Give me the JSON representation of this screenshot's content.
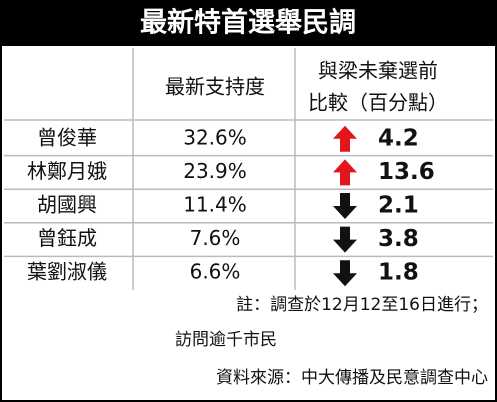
{
  "header": {
    "title": "最新特首選舉民調"
  },
  "table": {
    "columns": {
      "support": "最新支持度",
      "change_line1": "與梁未棄選前",
      "change_line2": "比較（百分點）"
    },
    "rows": [
      {
        "name": "曾俊華",
        "support": "32.6%",
        "trend": "up",
        "change": "4.2"
      },
      {
        "name": "林鄭月娥",
        "support": "23.9%",
        "trend": "up",
        "change": "13.6"
      },
      {
        "name": "胡國興",
        "support": "11.4%",
        "trend": "down",
        "change": "2.1"
      },
      {
        "name": "曾鈺成",
        "support": "7.6%",
        "trend": "down",
        "change": "3.8"
      },
      {
        "name": "葉劉淑儀",
        "support": "6.6%",
        "trend": "down",
        "change": "1.8"
      }
    ]
  },
  "footer": {
    "notes": [
      "註：調查於12月12至16日進行；",
      "訪問逾千市民",
      "資料來源：中大傳播及民意調查中心"
    ]
  }
}
